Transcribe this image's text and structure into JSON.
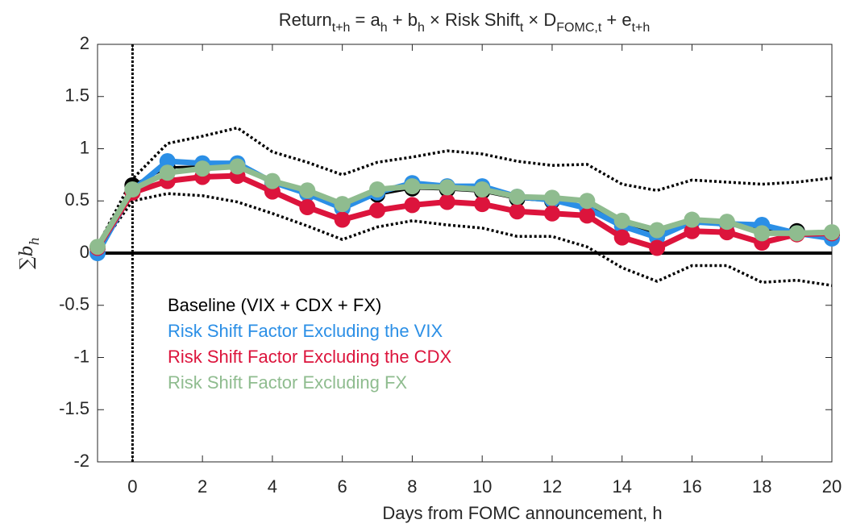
{
  "chart_data": {
    "type": "line",
    "title": [
      {
        "text": "Return"
      },
      {
        "text": "t+h",
        "sub": true
      },
      {
        "text": " = a"
      },
      {
        "text": "h",
        "sub": true
      },
      {
        "text": " + b"
      },
      {
        "text": "h",
        "sub": true
      },
      {
        "text": " × Risk Shift"
      },
      {
        "text": "t",
        "sub": true
      },
      {
        "text": " × D"
      },
      {
        "text": "FOMC,t",
        "sub": true
      },
      {
        "text": " + e"
      },
      {
        "text": "t+h",
        "sub": true
      }
    ],
    "xlabel": "Days from FOMC announcement, h",
    "ylabel": [
      {
        "text": "∑"
      },
      {
        "text": "b"
      },
      {
        "text": "h",
        "sub": true
      }
    ],
    "x": [
      -1,
      0,
      1,
      2,
      3,
      4,
      5,
      6,
      7,
      8,
      9,
      10,
      11,
      12,
      13,
      14,
      15,
      16,
      17,
      18,
      19,
      20
    ],
    "series": [
      {
        "name": "Baseline (VIX + CDX + FX)",
        "color": "#000000",
        "values": [
          0.05,
          0.65,
          0.82,
          0.83,
          0.83,
          0.68,
          0.57,
          0.43,
          0.56,
          0.62,
          0.61,
          0.59,
          0.52,
          0.5,
          0.45,
          0.29,
          0.18,
          0.3,
          0.29,
          0.22,
          0.21,
          0.18
        ]
      },
      {
        "name": "Risk Shift Factor Excluding the VIX",
        "color": "#2b8fe6",
        "values": [
          0.0,
          0.6,
          0.88,
          0.86,
          0.86,
          0.68,
          0.57,
          0.43,
          0.58,
          0.67,
          0.64,
          0.64,
          0.54,
          0.51,
          0.43,
          0.26,
          0.15,
          0.3,
          0.28,
          0.27,
          0.19,
          0.14
        ]
      },
      {
        "name": "Risk Shift Factor Excluding the CDX",
        "color": "#dc143c",
        "values": [
          0.05,
          0.58,
          0.69,
          0.73,
          0.74,
          0.59,
          0.44,
          0.32,
          0.41,
          0.46,
          0.49,
          0.47,
          0.4,
          0.38,
          0.36,
          0.15,
          0.05,
          0.21,
          0.2,
          0.1,
          0.18,
          0.19
        ]
      },
      {
        "name": "Risk Shift Factor Excluding FX",
        "color": "#8fbc8f",
        "values": [
          0.06,
          0.61,
          0.77,
          0.81,
          0.83,
          0.69,
          0.6,
          0.47,
          0.61,
          0.64,
          0.63,
          0.61,
          0.54,
          0.53,
          0.5,
          0.31,
          0.22,
          0.32,
          0.3,
          0.19,
          0.19,
          0.2
        ]
      }
    ],
    "confidence_band": {
      "color": "#000000",
      "upper": [
        0.07,
        0.71,
        1.05,
        1.12,
        1.2,
        0.97,
        0.87,
        0.75,
        0.87,
        0.92,
        0.98,
        0.95,
        0.88,
        0.84,
        0.85,
        0.66,
        0.6,
        0.7,
        0.68,
        0.66,
        0.68,
        0.72
      ],
      "lower": [
        0.03,
        0.5,
        0.57,
        0.55,
        0.49,
        0.38,
        0.26,
        0.13,
        0.25,
        0.31,
        0.27,
        0.24,
        0.16,
        0.16,
        0.06,
        -0.14,
        -0.27,
        -0.12,
        -0.12,
        -0.28,
        -0.26,
        -0.31
      ]
    },
    "vline": 0,
    "hline": 0,
    "xlim": [
      -1,
      20
    ],
    "xticks": [
      0,
      2,
      4,
      6,
      8,
      10,
      12,
      14,
      16,
      18,
      20
    ],
    "ylim": [
      -2,
      2
    ],
    "yticks": [
      -2,
      -1.5,
      -1,
      -0.5,
      0,
      0.5,
      1,
      1.5,
      2
    ],
    "legend": "west"
  }
}
